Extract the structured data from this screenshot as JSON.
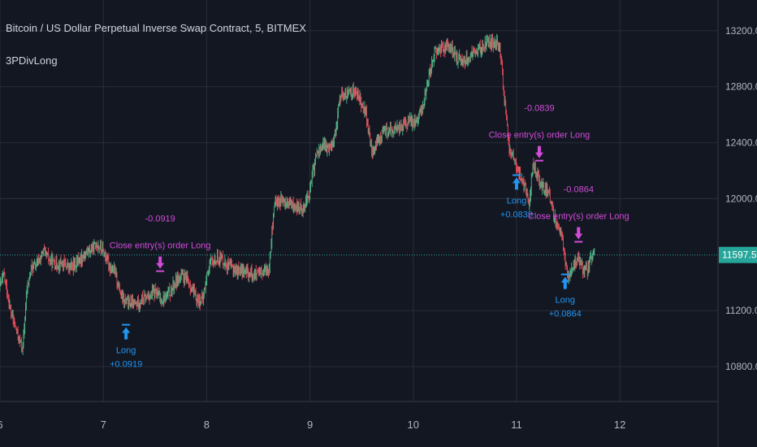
{
  "chart_data": {
    "type": "candlestick",
    "title": "Bitcoin / US Dollar Perpetual Inverse Swap Contract, 5, BITMEX",
    "study": "3PDivLong",
    "ylim": [
      10550,
      13420
    ],
    "xlim": [
      6.0,
      12.95
    ],
    "y_ticks": [
      "13200.0",
      "12800.0",
      "12400.0",
      "12000.0",
      "11200.0",
      "10800.0"
    ],
    "x_ticks": [
      "6",
      "7",
      "8",
      "9",
      "10",
      "11",
      "12"
    ],
    "last_price": "11597.5",
    "last_price_value": 11597.5,
    "price_path": [
      [
        6.0,
        11380
      ],
      [
        6.04,
        11450
      ],
      [
        6.1,
        11200
      ],
      [
        6.16,
        11050
      ],
      [
        6.22,
        10920
      ],
      [
        6.26,
        11350
      ],
      [
        6.3,
        11500
      ],
      [
        6.36,
        11530
      ],
      [
        6.42,
        11620
      ],
      [
        6.48,
        11560
      ],
      [
        6.54,
        11530
      ],
      [
        6.6,
        11540
      ],
      [
        6.68,
        11500
      ],
      [
        6.76,
        11560
      ],
      [
        6.84,
        11620
      ],
      [
        6.9,
        11640
      ],
      [
        6.94,
        11680
      ],
      [
        7.0,
        11620
      ],
      [
        7.06,
        11520
      ],
      [
        7.12,
        11460
      ],
      [
        7.18,
        11280
      ],
      [
        7.22,
        11260
      ],
      [
        7.3,
        11240
      ],
      [
        7.38,
        11280
      ],
      [
        7.45,
        11310
      ],
      [
        7.5,
        11330
      ],
      [
        7.56,
        11280
      ],
      [
        7.6,
        11290
      ],
      [
        7.66,
        11350
      ],
      [
        7.72,
        11430
      ],
      [
        7.78,
        11440
      ],
      [
        7.84,
        11380
      ],
      [
        7.9,
        11280
      ],
      [
        7.96,
        11270
      ],
      [
        8.02,
        11520
      ],
      [
        8.08,
        11560
      ],
      [
        8.14,
        11580
      ],
      [
        8.2,
        11520
      ],
      [
        8.28,
        11490
      ],
      [
        8.36,
        11480
      ],
      [
        8.44,
        11460
      ],
      [
        8.52,
        11450
      ],
      [
        8.6,
        11500
      ],
      [
        8.66,
        11980
      ],
      [
        8.72,
        11980
      ],
      [
        8.8,
        11960
      ],
      [
        8.88,
        11930
      ],
      [
        8.94,
        11940
      ],
      [
        9.0,
        12060
      ],
      [
        9.06,
        12310
      ],
      [
        9.12,
        12380
      ],
      [
        9.18,
        12360
      ],
      [
        9.24,
        12450
      ],
      [
        9.3,
        12760
      ],
      [
        9.36,
        12740
      ],
      [
        9.42,
        12780
      ],
      [
        9.48,
        12720
      ],
      [
        9.54,
        12620
      ],
      [
        9.6,
        12320
      ],
      [
        9.66,
        12420
      ],
      [
        9.72,
        12480
      ],
      [
        9.78,
        12480
      ],
      [
        9.84,
        12500
      ],
      [
        9.9,
        12520
      ],
      [
        9.96,
        12550
      ],
      [
        10.02,
        12560
      ],
      [
        10.08,
        12620
      ],
      [
        10.14,
        12840
      ],
      [
        10.2,
        13040
      ],
      [
        10.28,
        13080
      ],
      [
        10.36,
        13080
      ],
      [
        10.42,
        13000
      ],
      [
        10.48,
        12990
      ],
      [
        10.54,
        13010
      ],
      [
        10.6,
        13050
      ],
      [
        10.66,
        13070
      ],
      [
        10.72,
        13110
      ],
      [
        10.78,
        13120
      ],
      [
        10.84,
        13090
      ],
      [
        10.88,
        12720
      ],
      [
        10.9,
        12620
      ],
      [
        10.92,
        12380
      ],
      [
        10.96,
        12320
      ],
      [
        11.0,
        12220
      ],
      [
        11.04,
        12160
      ],
      [
        11.08,
        12090
      ],
      [
        11.12,
        11960
      ],
      [
        11.16,
        12250
      ],
      [
        11.2,
        12160
      ],
      [
        11.24,
        12100
      ],
      [
        11.28,
        12060
      ],
      [
        11.32,
        12010
      ],
      [
        11.36,
        11880
      ],
      [
        11.42,
        11780
      ],
      [
        11.46,
        11620
      ],
      [
        11.5,
        11420
      ],
      [
        11.54,
        11520
      ],
      [
        11.6,
        11560
      ],
      [
        11.64,
        11490
      ],
      [
        11.68,
        11480
      ],
      [
        11.72,
        11560
      ],
      [
        11.76,
        11600
      ]
    ],
    "trades": [
      {
        "entry_x": 7.22,
        "entry_y": 11110,
        "entry_label": "Long",
        "entry_value": "+0.0919",
        "exit_x": 7.55,
        "exit_y": 11470,
        "exit_label": "Close entry(s) order Long",
        "exit_value": "-0.0919"
      },
      {
        "entry_x": 11.0,
        "entry_y": 12180,
        "entry_label": "Long",
        "entry_value": "+0.0839",
        "exit_x": 11.22,
        "exit_y": 12260,
        "exit_label": "Close entry(s) order Long",
        "exit_value": "-0.0839"
      },
      {
        "entry_x": 11.47,
        "entry_y": 11470,
        "entry_label": "Long",
        "entry_value": "+0.0864",
        "exit_x": 11.6,
        "exit_y": 11680,
        "exit_label": "Close entry(s) order Long",
        "exit_value": "-0.0864"
      }
    ],
    "grid": true,
    "legend_position": "top-left"
  },
  "colors": {
    "background": "#131722",
    "grid": "#2a2e39",
    "axis_text": "#b2b5be",
    "candle_up": "#53b987",
    "candle_down": "#eb4d5c",
    "entry_marker": "#2196f3",
    "exit_marker": "#d24bd8",
    "price_line": "#26a69a",
    "price_badge": "#26a69a"
  }
}
